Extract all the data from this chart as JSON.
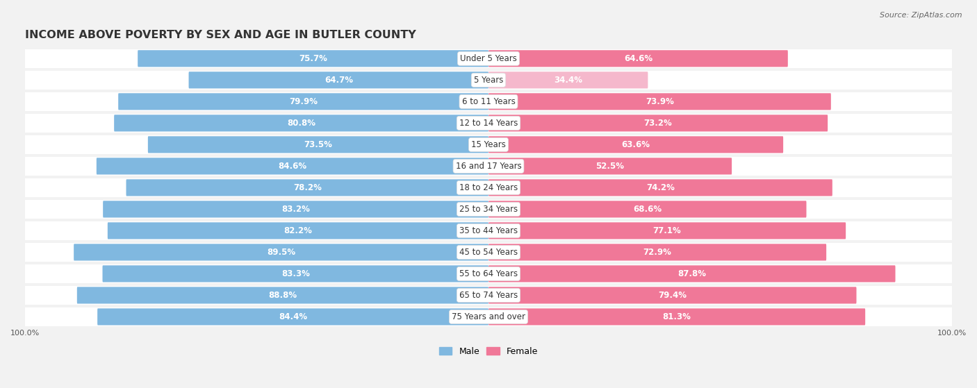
{
  "title": "INCOME ABOVE POVERTY BY SEX AND AGE IN BUTLER COUNTY",
  "source": "Source: ZipAtlas.com",
  "categories": [
    "Under 5 Years",
    "5 Years",
    "6 to 11 Years",
    "12 to 14 Years",
    "15 Years",
    "16 and 17 Years",
    "18 to 24 Years",
    "25 to 34 Years",
    "35 to 44 Years",
    "45 to 54 Years",
    "55 to 64 Years",
    "65 to 74 Years",
    "75 Years and over"
  ],
  "male_values": [
    75.7,
    64.7,
    79.9,
    80.8,
    73.5,
    84.6,
    78.2,
    83.2,
    82.2,
    89.5,
    83.3,
    88.8,
    84.4
  ],
  "female_values": [
    64.6,
    34.4,
    73.9,
    73.2,
    63.6,
    52.5,
    74.2,
    68.6,
    77.1,
    72.9,
    87.8,
    79.4,
    81.3
  ],
  "female_light_indices": [
    1
  ],
  "male_color": "#80B8E0",
  "female_color": "#F07898",
  "female_light_color": "#F5B8CC",
  "bg_color": "#F2F2F2",
  "row_bg_color": "#FFFFFF",
  "row_sep_color": "#E0E0E0",
  "title_fontsize": 11.5,
  "label_fontsize": 8.5,
  "source_fontsize": 8,
  "legend_fontsize": 9,
  "cat_fontsize": 8.5,
  "tick_fontsize": 8
}
